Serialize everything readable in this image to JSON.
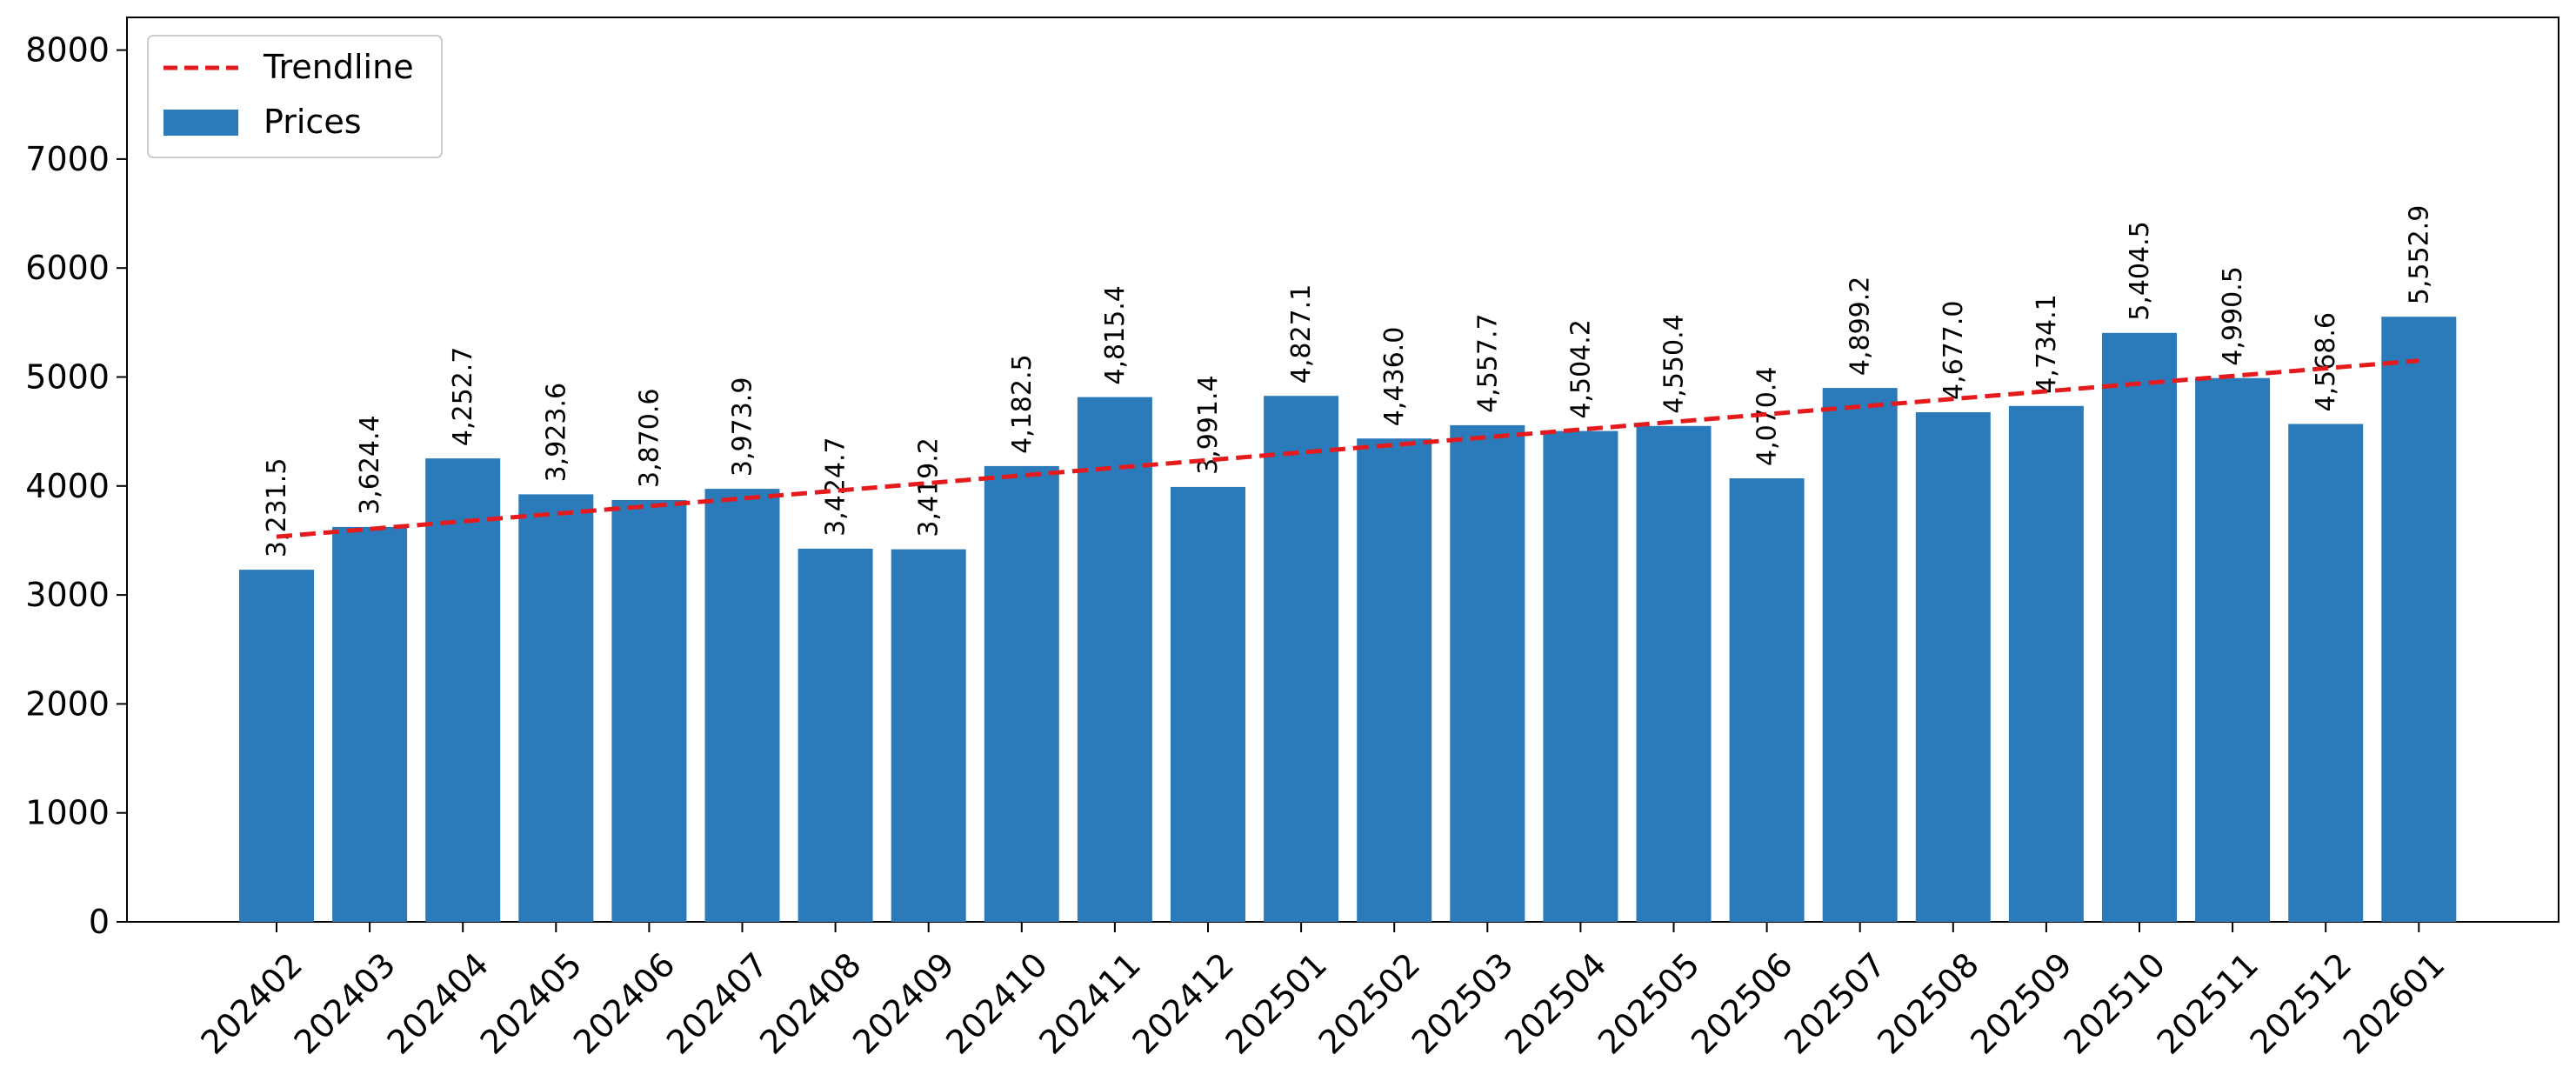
{
  "chart_data": {
    "type": "bar",
    "title": "",
    "xlabel": "",
    "ylabel": "",
    "categories": [
      "202402",
      "202403",
      "202404",
      "202405",
      "202406",
      "202407",
      "202408",
      "202409",
      "202410",
      "202411",
      "202412",
      "202501",
      "202502",
      "202503",
      "202504",
      "202505",
      "202506",
      "202507",
      "202508",
      "202509",
      "202510",
      "202511",
      "202512",
      "202601"
    ],
    "series": [
      {
        "name": "Prices",
        "color": "#2b7bba",
        "values": [
          3231.5,
          3624.4,
          4252.7,
          3923.6,
          3870.6,
          3973.9,
          3424.7,
          3419.2,
          4182.5,
          4815.4,
          3991.4,
          4827.1,
          4436.0,
          4557.7,
          4504.2,
          4550.4,
          4070.4,
          4899.2,
          4677.0,
          4734.1,
          5404.5,
          4990.5,
          4568.6,
          5552.9
        ],
        "value_labels": [
          "3,231.5",
          "3,624.4",
          "4,252.7",
          "3,923.6",
          "3,870.6",
          "3,973.9",
          "3,424.7",
          "3,419.2",
          "4,182.5",
          "4,815.4",
          "3,991.4",
          "4,827.1",
          "4,436.0",
          "4,557.7",
          "4,504.2",
          "4,550.4",
          "4,070.4",
          "4,899.2",
          "4,677.0",
          "4,734.1",
          "5,404.5",
          "4,990.5",
          "4,568.6",
          "5,552.9"
        ]
      },
      {
        "name": "Trendline",
        "type": "line",
        "style": "dashed",
        "color": "#e41a1c",
        "start": 3535,
        "end": 5150
      }
    ],
    "ylim": [
      0,
      8300
    ],
    "yticks": [
      0,
      1000,
      2000,
      3000,
      4000,
      5000,
      6000,
      7000,
      8000
    ],
    "grid": false,
    "legend_position": "top-left"
  }
}
